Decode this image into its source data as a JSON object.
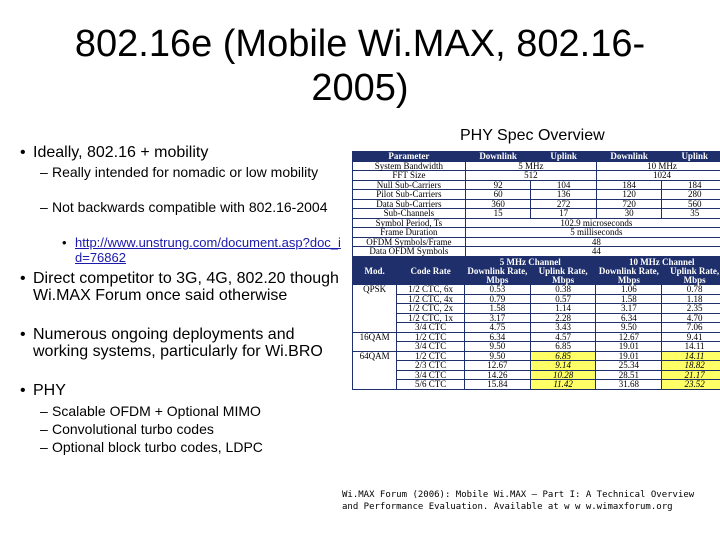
{
  "title": "802.16e (Mobile Wi.MAX, 802.16-2005)",
  "bullets": [
    {
      "text": "Ideally, 802.16 + mobility"
    },
    {
      "text": "Really intended for nomadic or low mobility"
    },
    {
      "text": "Not backwards compatible with 802.16-2004"
    },
    {
      "text": "http://www.unstrung.com/document.asp?doc_id=76862"
    },
    {
      "text": "Direct competitor to 3G, 4G, 802.20 though Wi.MAX Forum once said otherwise"
    },
    {
      "text": "Numerous ongoing deployments and working systems, particularly for Wi.BRO"
    },
    {
      "text": "PHY"
    },
    {
      "text": "Scalable OFDM + Optional MIMO"
    },
    {
      "text": "Convolutional turbo codes"
    },
    {
      "text": "Optional block turbo codes, LDPC"
    }
  ],
  "caption": "PHY Spec Overview",
  "table1": {
    "headers": [
      "Parameter",
      "Downlink",
      "Uplink",
      "Downlink",
      "Uplink"
    ],
    "rows": [
      {
        "label": "System Bandwidth",
        "c5": "5 MHz",
        "c10": "10 MHz"
      },
      {
        "label": "FFT Size",
        "c5": "512",
        "c10": "1024"
      },
      {
        "label": "Null Sub-Carriers",
        "vals": [
          "92",
          "104",
          "184",
          "184"
        ]
      },
      {
        "label": "Pilot Sub-Carriers",
        "vals": [
          "60",
          "136",
          "120",
          "280"
        ]
      },
      {
        "label": "Data Sub-Carriers",
        "vals": [
          "360",
          "272",
          "720",
          "560"
        ]
      },
      {
        "label": "Sub-Channels",
        "vals": [
          "15",
          "17",
          "30",
          "35"
        ]
      },
      {
        "label": "Symbol Period, Ts",
        "all": "102.9 microseconds"
      },
      {
        "label": "Frame Duration",
        "all": "5 milliseconds"
      },
      {
        "label": "OFDM Symbols/Frame",
        "all": "48"
      },
      {
        "label": "Data OFDM Symbols",
        "all": "44"
      }
    ]
  },
  "table2": {
    "channel5": "5 MHz Channel",
    "channel10": "10 MHz Channel",
    "col_mod": "Mod.",
    "col_code": "Code Rate",
    "col_dl": "Downlink Rate, Mbps",
    "col_ul": "Uplink Rate, Mbps",
    "groups": [
      {
        "mod": "QPSK",
        "rows": [
          {
            "code": "1/2 CTC, 6x",
            "v": [
              "0.53",
              "0.38",
              "1.06",
              "0.78"
            ]
          },
          {
            "code": "1/2 CTC, 4x",
            "v": [
              "0.79",
              "0.57",
              "1.58",
              "1.18"
            ]
          },
          {
            "code": "1/2 CTC, 2x",
            "v": [
              "1.58",
              "1.14",
              "3.17",
              "2.35"
            ]
          },
          {
            "code": "1/2 CTC, 1x",
            "v": [
              "3.17",
              "2.28",
              "6.34",
              "4.70"
            ]
          },
          {
            "code": "3/4 CTC",
            "v": [
              "4.75",
              "3.43",
              "9.50",
              "7.06"
            ]
          }
        ]
      },
      {
        "mod": "16QAM",
        "rows": [
          {
            "code": "1/2 CTC",
            "v": [
              "6.34",
              "4.57",
              "12.67",
              "9.41"
            ]
          },
          {
            "code": "3/4 CTC",
            "v": [
              "9.50",
              "6.85",
              "19.01",
              "14.11"
            ]
          }
        ]
      },
      {
        "mod": "64QAM",
        "rows": [
          {
            "code": "1/2 CTC",
            "v": [
              "9.50",
              "6.85",
              "19.01",
              "14.11"
            ]
          },
          {
            "code": "2/3 CTC",
            "v": [
              "12.67",
              "9.14",
              "25.34",
              "18.82"
            ]
          },
          {
            "code": "3/4 CTC",
            "v": [
              "14.26",
              "10.28",
              "28.51",
              "21.17"
            ]
          },
          {
            "code": "5/6 CTC",
            "v": [
              "15.84",
              "11.42",
              "31.68",
              "23.52"
            ]
          }
        ]
      }
    ]
  },
  "footnote": "Wi.MAX Forum (2006): Mobile Wi.MAX – Part I: A Technical Overview and Performance Evaluation. Available at w w w.wimaxforum.org"
}
